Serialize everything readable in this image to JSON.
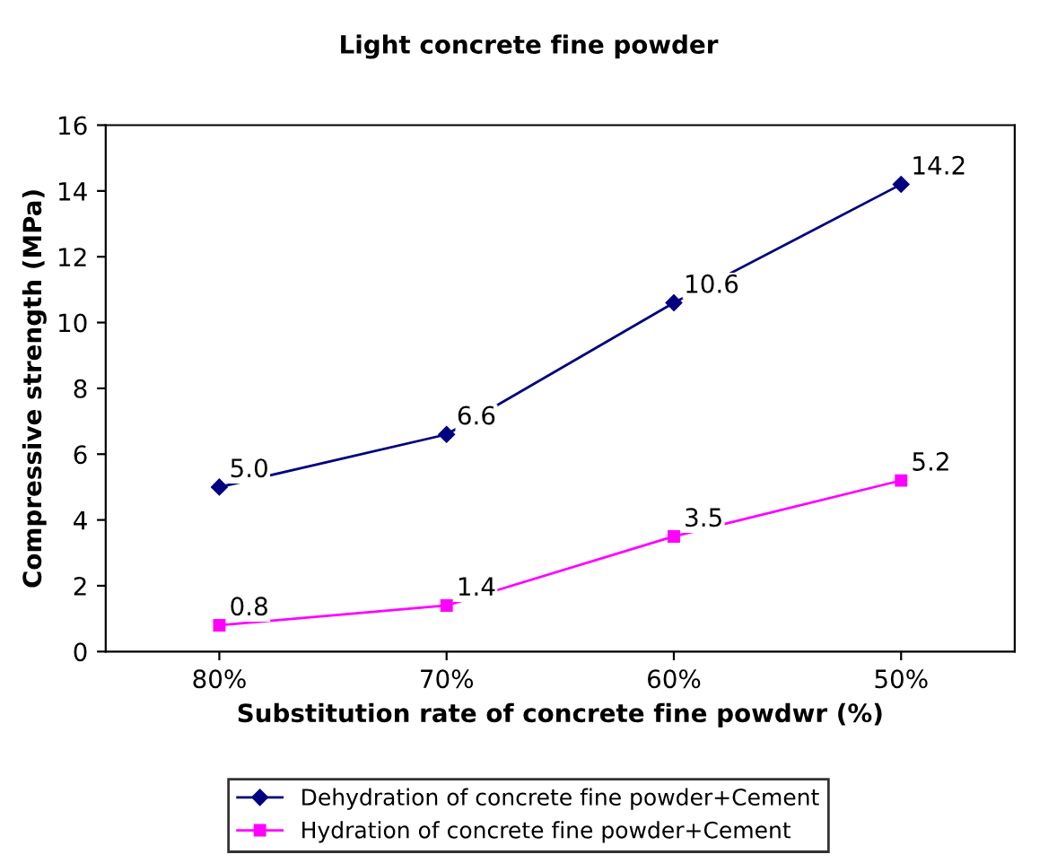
{
  "chart_data": {
    "type": "line",
    "title": "Light concrete fine powder",
    "xlabel": "Substitution rate of concrete fine powdwr (%)",
    "ylabel": "Compressive strength (MPa)",
    "categories": [
      "80%",
      "70%",
      "60%",
      "50%"
    ],
    "series": [
      {
        "name": "Dehydration of concrete fine powder+Cement",
        "color": "#000080",
        "marker": "diamond",
        "values": [
          5.0,
          6.6,
          10.6,
          14.2
        ],
        "value_labels": [
          "5.0",
          "6.6",
          "10.6",
          "14.2"
        ]
      },
      {
        "name": "Hydration of concrete fine powder+Cement",
        "color": "#ff00ff",
        "marker": "square",
        "values": [
          0.8,
          1.4,
          3.5,
          5.2
        ],
        "value_labels": [
          "0.8",
          "1.4",
          "3.5",
          "5.2"
        ]
      }
    ],
    "ylim": [
      0,
      16
    ],
    "yticks": [
      0,
      2,
      4,
      6,
      8,
      10,
      12,
      14,
      16
    ],
    "grid": false,
    "legend": "bottom",
    "line_style": "solid"
  }
}
